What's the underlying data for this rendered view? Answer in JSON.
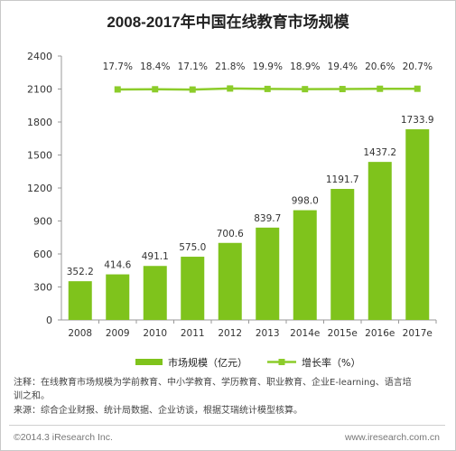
{
  "chart_data": {
    "type": "bar",
    "title": "2008-2017年中国在线教育市场规模",
    "categories": [
      "2008",
      "2009",
      "2010",
      "2011",
      "2012",
      "2013",
      "2014e",
      "2015e",
      "2016e",
      "2017e"
    ],
    "series": [
      {
        "name": "市场规模（亿元）",
        "type": "bar",
        "values": [
          352.2,
          414.6,
          491.1,
          575.0,
          700.6,
          839.7,
          998.0,
          1191.7,
          1437.2,
          1733.9
        ],
        "labels": [
          "352.2",
          "414.6",
          "491.1",
          "575.0",
          "700.6",
          "839.7",
          "998.0",
          "1191.7",
          "1437.2",
          "1733.9"
        ]
      },
      {
        "name": "增长率（%）",
        "type": "line",
        "values": [
          null,
          17.7,
          18.4,
          17.1,
          21.8,
          19.9,
          18.9,
          19.4,
          20.6,
          20.7
        ],
        "labels": [
          "",
          "17.7%",
          "18.4%",
          "17.1%",
          "21.8%",
          "19.9%",
          "18.9%",
          "19.4%",
          "20.6%",
          "20.7%"
        ]
      }
    ],
    "ylim": [
      0,
      2400
    ],
    "yticks": [
      "0",
      "300",
      "600",
      "900",
      "1200",
      "1500",
      "1800",
      "2100",
      "2400"
    ],
    "grid": false,
    "legend_position": "bottom",
    "colors": {
      "bar": "#7fc31c",
      "line": "#8ccc2a",
      "axis": "#999999"
    }
  },
  "notes": {
    "line1": "注释：在线教育市场规模为学前教育、中小学教育、学历教育、职业教育、企业E-learning、语言培",
    "line2": "训之和。",
    "line3": "来源：综合企业财报、统计局数据、企业访谈，根据艾瑞统计模型核算。"
  },
  "footer": {
    "left": "©2014.3 iResearch Inc.",
    "right": "www.iresearch.com.cn"
  }
}
